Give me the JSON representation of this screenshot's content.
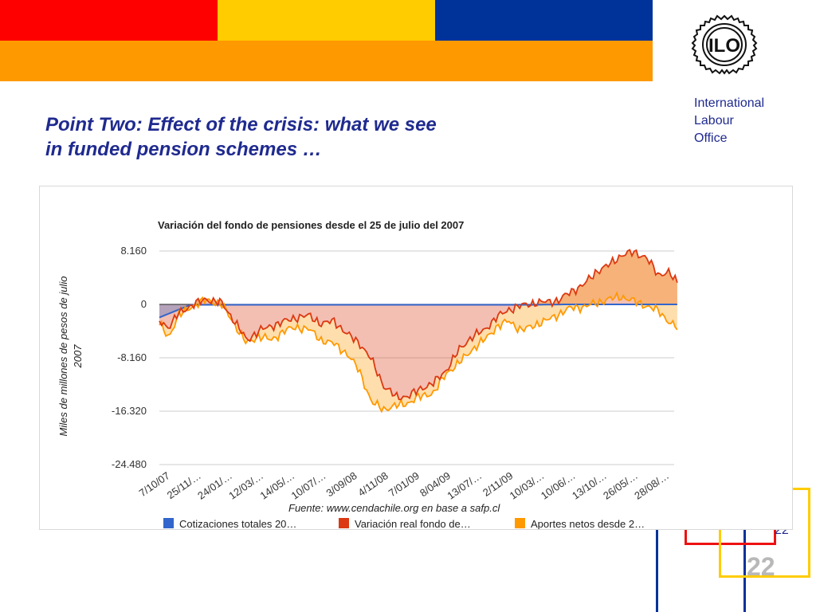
{
  "slide": {
    "title_line1": "Point Two: Effect of the crisis: what we see",
    "title_line2": "in funded pension schemes …",
    "logo_text": "ILO",
    "org_line1": "International",
    "org_line2": "Labour",
    "org_line3": "Office",
    "page_number": "22",
    "page_number_small": "22",
    "colors": {
      "band_red": "#ff0000",
      "band_yellow": "#ffcc00",
      "band_blue": "#003399",
      "band_orange": "#ff9900",
      "title_blue": "#1f2a8f"
    }
  },
  "chart_data": {
    "type": "area",
    "title": "Variación del fondo de pensiones desde el 25 de julio del 2007",
    "ylabel_line1": "Miles de millones de pesos de julio",
    "ylabel_line2": "2007",
    "source": "Fuente: www.cendachile.org en base a safp.cl",
    "ylim": [
      -24480,
      8160
    ],
    "yticks": [
      8160,
      0,
      -8160,
      -16320,
      -24480
    ],
    "ytick_labels": [
      "8.160",
      "0",
      "-8.160",
      "-16.320",
      "-24.480"
    ],
    "xtick_labels": [
      "7/10/07",
      "25/11/…",
      "24/01/…",
      "12/03/…",
      "14/05/…",
      "10/07/…",
      "3/09/08",
      "4/11/08",
      "7/01/09",
      "8/04/09",
      "13/07/…",
      "2/11/09",
      "10/03/…",
      "10/06/…",
      "13/10/…",
      "26/05/…",
      "28/08/…"
    ],
    "legend": [
      "Cotizaciones totales 20…",
      "Variación real fondo de…",
      "Aportes netos desde 2…"
    ],
    "series": [
      {
        "name": "Cotizaciones totales 20…",
        "color": "#3366cc",
        "x": [
          0,
          1,
          2,
          3,
          4,
          5,
          6,
          7,
          8,
          9,
          10,
          11,
          12,
          13,
          14,
          15,
          16,
          16.6
        ],
        "values": [
          -2000,
          -60,
          -60,
          -60,
          -60,
          -60,
          -60,
          -60,
          -60,
          -60,
          -60,
          -60,
          -60,
          0,
          0,
          0,
          0,
          0
        ]
      },
      {
        "name": "Variación real fondo de…",
        "color": "#dc3912",
        "x": [
          0,
          0.3,
          0.6,
          1.0,
          1.5,
          2.0,
          2.4,
          2.8,
          3.2,
          3.6,
          4.0,
          4.4,
          4.8,
          5.2,
          5.6,
          6.0,
          6.4,
          6.8,
          7.2,
          7.6,
          8.0,
          8.4,
          8.8,
          9.2,
          9.6,
          10.0,
          10.4,
          10.8,
          11.2,
          11.6,
          12.0,
          12.4,
          12.8,
          13.2,
          13.6,
          14.0,
          14.4,
          14.8,
          15.2,
          15.6,
          16.0,
          16.3,
          16.6
        ],
        "values": [
          -2500,
          -3500,
          -1500,
          -200,
          800,
          200,
          -2500,
          -5500,
          -4000,
          -3300,
          -2600,
          -2000,
          -1700,
          -3000,
          -2500,
          -4500,
          -5800,
          -8500,
          -12500,
          -14200,
          -14000,
          -12800,
          -12000,
          -10000,
          -7000,
          -5000,
          -4000,
          -2000,
          -800,
          -200,
          200,
          400,
          600,
          2000,
          3000,
          5000,
          6000,
          7500,
          8000,
          7200,
          4500,
          5000,
          3300
        ]
      },
      {
        "name": "Aportes netos desde 2…",
        "color": "#ff9900",
        "x": [
          0,
          0.3,
          0.6,
          1.0,
          1.5,
          2.0,
          2.4,
          2.8,
          3.2,
          3.6,
          4.0,
          4.4,
          4.8,
          5.2,
          5.6,
          6.0,
          6.4,
          6.8,
          7.2,
          7.6,
          8.0,
          8.4,
          8.8,
          9.2,
          9.6,
          10.0,
          10.4,
          10.8,
          11.2,
          11.6,
          12.0,
          12.4,
          12.8,
          13.2,
          13.6,
          14.0,
          14.4,
          14.8,
          15.2,
          15.6,
          16.0,
          16.3,
          16.6
        ],
        "values": [
          -3000,
          -5000,
          -1800,
          -400,
          700,
          0,
          -3000,
          -6000,
          -4800,
          -5500,
          -4000,
          -3500,
          -3800,
          -5500,
          -6000,
          -7500,
          -10000,
          -15000,
          -16000,
          -15500,
          -15000,
          -14000,
          -13500,
          -10500,
          -9000,
          -7000,
          -5500,
          -3500,
          -2500,
          -4000,
          -3200,
          -2500,
          -1500,
          -500,
          -400,
          200,
          800,
          1200,
          500,
          -200,
          -1000,
          -2500,
          -3600
        ]
      }
    ]
  }
}
